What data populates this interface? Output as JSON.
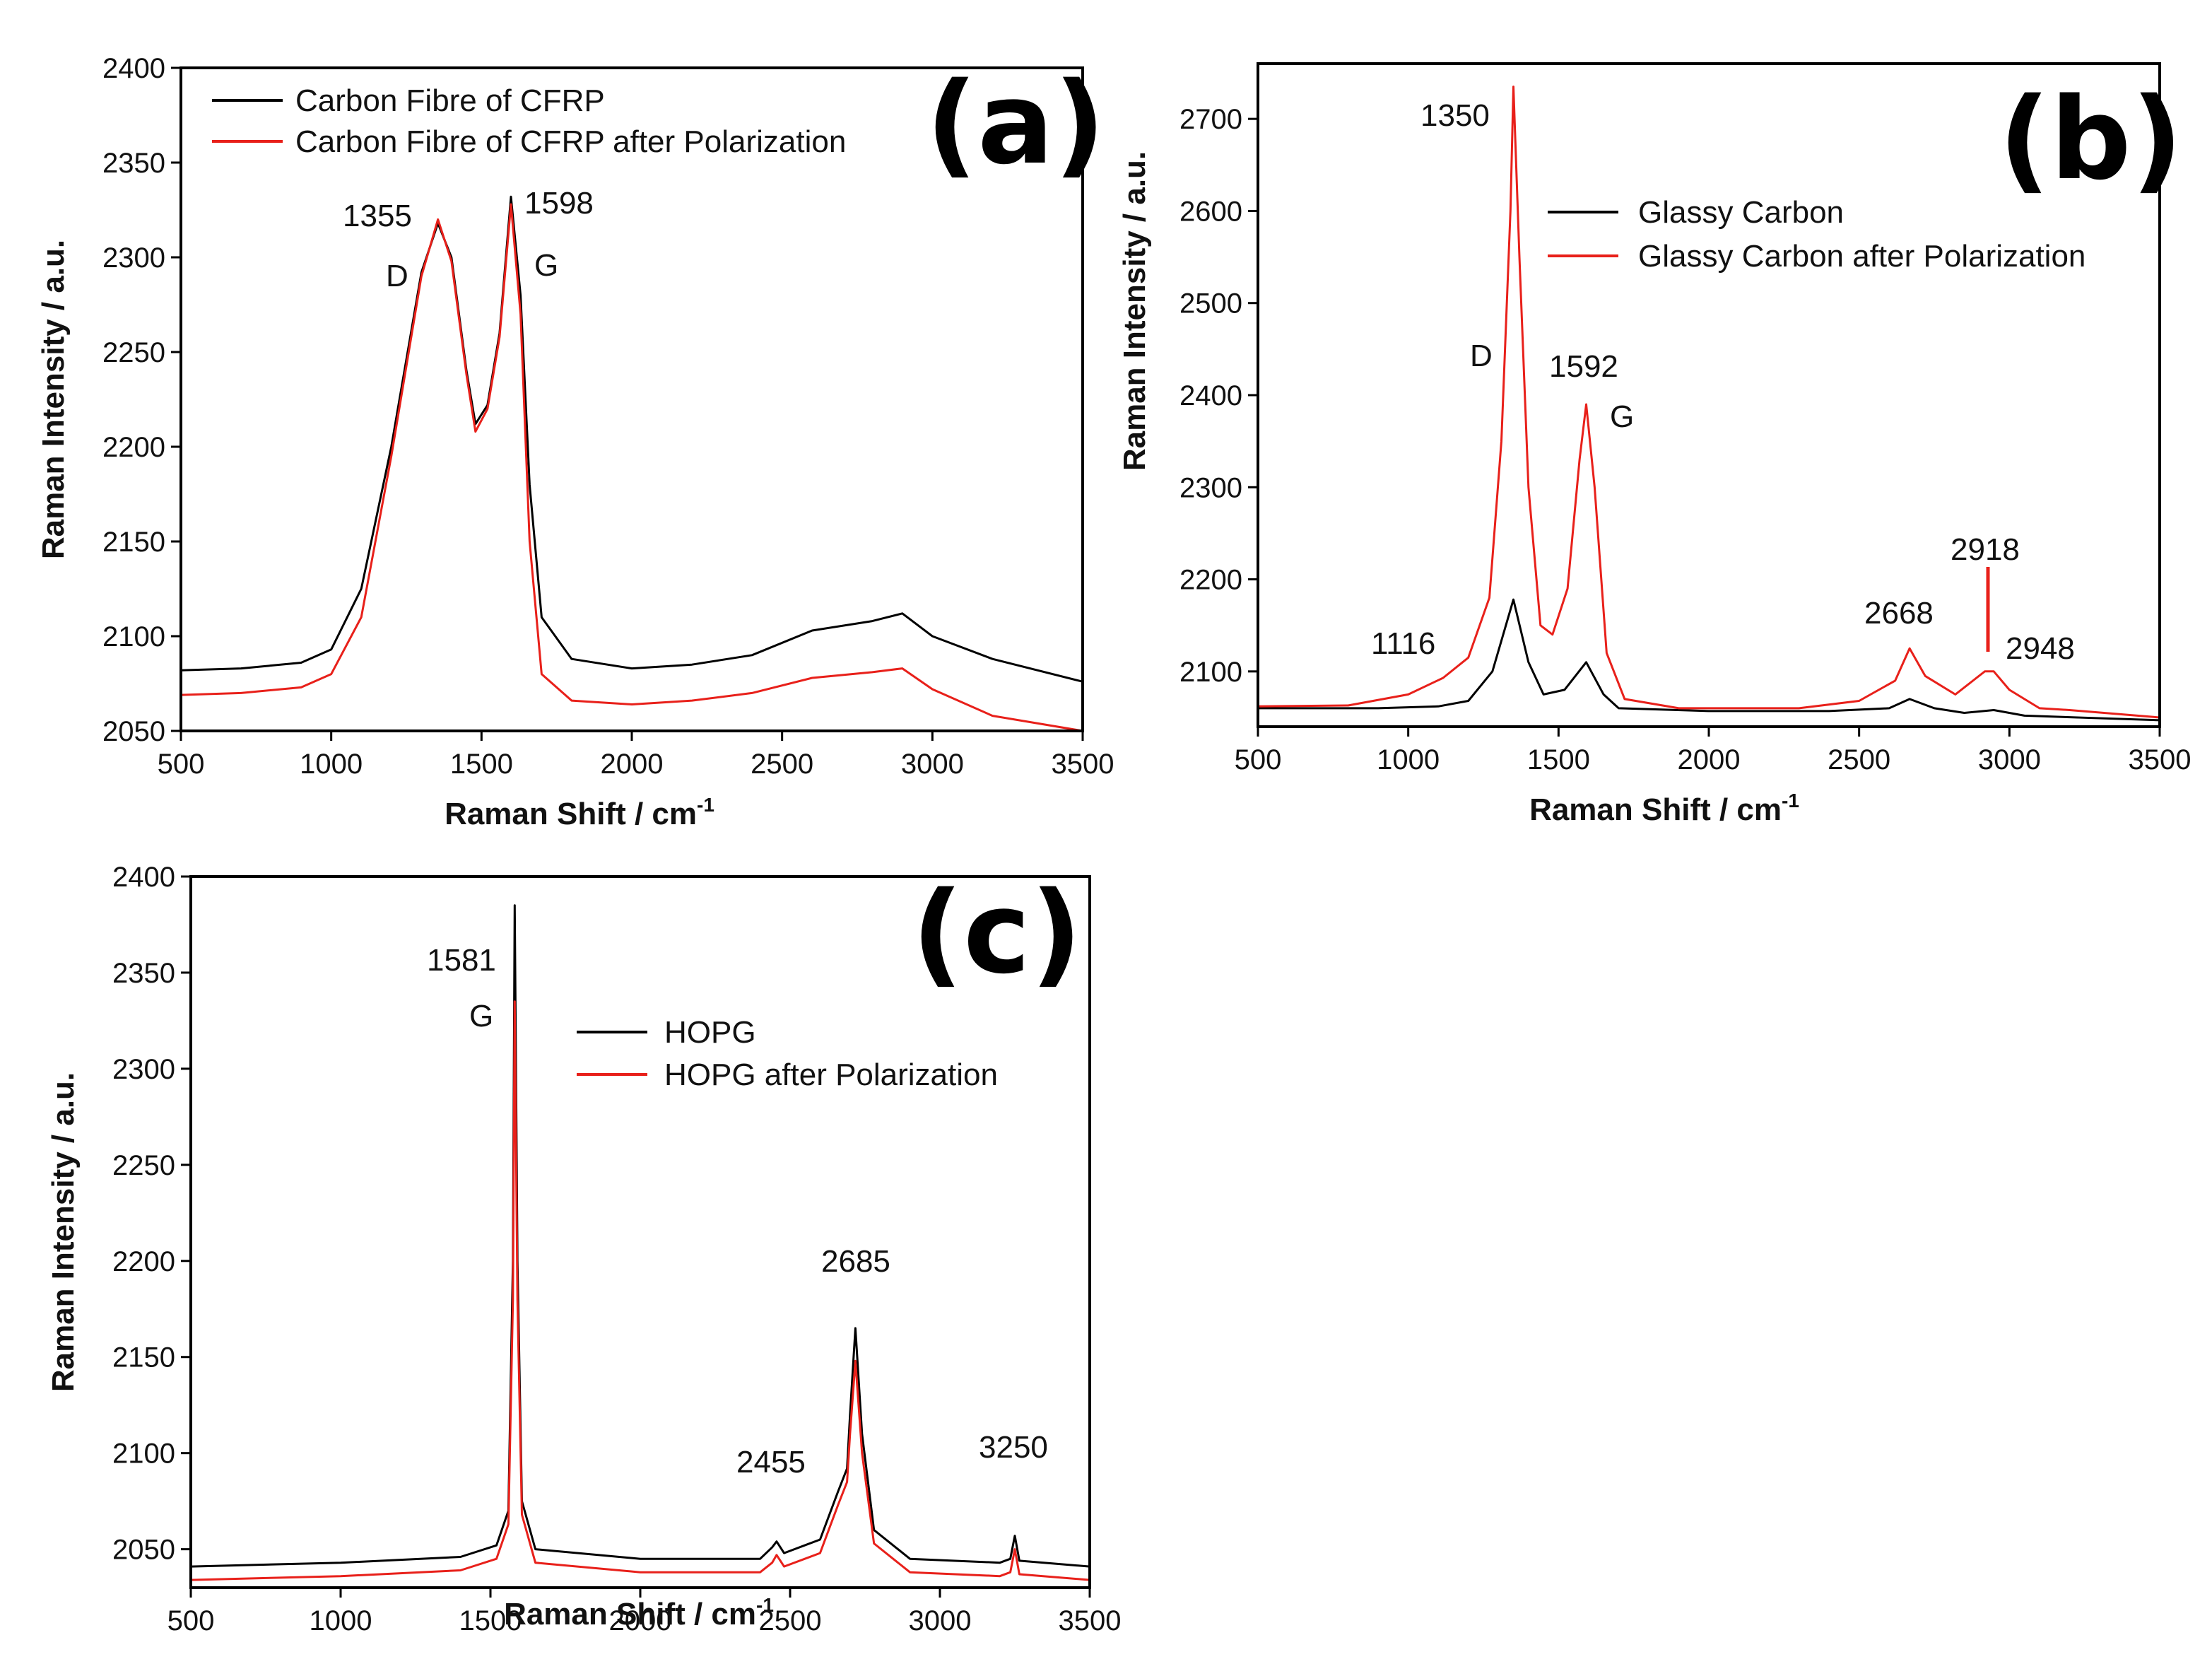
{
  "chart_data": [
    {
      "id": "a",
      "type": "line",
      "panel_label": "(a)",
      "xlabel": "Raman Shift / cm",
      "xlabel_sup": "-1",
      "ylabel": "Raman Intensity / a.u.",
      "xlim": [
        500,
        3500
      ],
      "ylim": [
        2050,
        2400
      ],
      "xticks": [
        500,
        1000,
        1500,
        2000,
        2500,
        3000,
        3500
      ],
      "yticks": [
        2050,
        2100,
        2150,
        2200,
        2250,
        2300,
        2350,
        2400
      ],
      "series": [
        {
          "name": "Carbon Fibre of CFRP",
          "color": "#000000",
          "points": [
            [
              500,
              2082
            ],
            [
              700,
              2083
            ],
            [
              900,
              2086
            ],
            [
              1000,
              2093
            ],
            [
              1100,
              2125
            ],
            [
              1200,
              2200
            ],
            [
              1300,
              2292
            ],
            [
              1355,
              2318
            ],
            [
              1400,
              2300
            ],
            [
              1450,
              2240
            ],
            [
              1480,
              2212
            ],
            [
              1520,
              2222
            ],
            [
              1560,
              2260
            ],
            [
              1598,
              2332
            ],
            [
              1630,
              2280
            ],
            [
              1660,
              2180
            ],
            [
              1700,
              2110
            ],
            [
              1800,
              2088
            ],
            [
              2000,
              2083
            ],
            [
              2200,
              2085
            ],
            [
              2400,
              2090
            ],
            [
              2600,
              2103
            ],
            [
              2800,
              2108
            ],
            [
              2900,
              2112
            ],
            [
              3000,
              2100
            ],
            [
              3200,
              2088
            ],
            [
              3500,
              2076
            ]
          ]
        },
        {
          "name": "Carbon Fibre of CFRP after Polarization",
          "color": "#e8201a",
          "points": [
            [
              500,
              2069
            ],
            [
              700,
              2070
            ],
            [
              900,
              2073
            ],
            [
              1000,
              2080
            ],
            [
              1100,
              2110
            ],
            [
              1200,
              2195
            ],
            [
              1300,
              2290
            ],
            [
              1355,
              2320
            ],
            [
              1400,
              2298
            ],
            [
              1450,
              2238
            ],
            [
              1480,
              2208
            ],
            [
              1520,
              2220
            ],
            [
              1560,
              2258
            ],
            [
              1598,
              2328
            ],
            [
              1630,
              2270
            ],
            [
              1660,
              2150
            ],
            [
              1700,
              2080
            ],
            [
              1800,
              2066
            ],
            [
              2000,
              2064
            ],
            [
              2200,
              2066
            ],
            [
              2400,
              2070
            ],
            [
              2600,
              2078
            ],
            [
              2800,
              2081
            ],
            [
              2900,
              2083
            ],
            [
              3000,
              2072
            ],
            [
              3200,
              2058
            ],
            [
              3500,
              2050
            ]
          ]
        }
      ],
      "annotations": [
        "1355",
        "D",
        "1598",
        "G"
      ]
    },
    {
      "id": "b",
      "type": "line",
      "panel_label": "(b)",
      "xlabel": "Raman Shift / cm",
      "xlabel_sup": "-1",
      "ylabel": "Raman Intensity / a.u.",
      "xlim": [
        500,
        3500
      ],
      "ylim": [
        2040,
        2760
      ],
      "xticks": [
        500,
        1000,
        1500,
        2000,
        2500,
        3000,
        3500
      ],
      "yticks": [
        2100,
        2200,
        2300,
        2400,
        2500,
        2600,
        2700
      ],
      "series": [
        {
          "name": "Glassy Carbon",
          "color": "#000000",
          "points": [
            [
              500,
              2060
            ],
            [
              900,
              2060
            ],
            [
              1100,
              2062
            ],
            [
              1200,
              2068
            ],
            [
              1280,
              2100
            ],
            [
              1350,
              2178
            ],
            [
              1400,
              2110
            ],
            [
              1450,
              2075
            ],
            [
              1520,
              2080
            ],
            [
              1592,
              2110
            ],
            [
              1650,
              2075
            ],
            [
              1700,
              2060
            ],
            [
              2000,
              2057
            ],
            [
              2400,
              2057
            ],
            [
              2600,
              2060
            ],
            [
              2668,
              2070
            ],
            [
              2750,
              2060
            ],
            [
              2850,
              2055
            ],
            [
              2948,
              2058
            ],
            [
              3050,
              2052
            ],
            [
              3500,
              2047
            ]
          ]
        },
        {
          "name": "Glassy Carbon after Polarization",
          "color": "#e8201a",
          "points": [
            [
              500,
              2062
            ],
            [
              800,
              2063
            ],
            [
              1000,
              2075
            ],
            [
              1116,
              2093
            ],
            [
              1200,
              2115
            ],
            [
              1270,
              2180
            ],
            [
              1310,
              2350
            ],
            [
              1340,
              2600
            ],
            [
              1350,
              2735
            ],
            [
              1370,
              2550
            ],
            [
              1400,
              2300
            ],
            [
              1440,
              2150
            ],
            [
              1480,
              2140
            ],
            [
              1530,
              2190
            ],
            [
              1570,
              2330
            ],
            [
              1592,
              2390
            ],
            [
              1620,
              2300
            ],
            [
              1660,
              2120
            ],
            [
              1720,
              2070
            ],
            [
              1900,
              2060
            ],
            [
              2300,
              2060
            ],
            [
              2500,
              2068
            ],
            [
              2620,
              2090
            ],
            [
              2668,
              2125
            ],
            [
              2720,
              2095
            ],
            [
              2820,
              2075
            ],
            [
              2918,
              2100
            ],
            [
              2948,
              2100
            ],
            [
              3000,
              2080
            ],
            [
              3100,
              2060
            ],
            [
              3200,
              2058
            ],
            [
              3500,
              2050
            ]
          ]
        }
      ],
      "annotations": [
        "1350",
        "D",
        "1592",
        "G",
        "1116",
        "2668",
        "2918",
        "2948"
      ]
    },
    {
      "id": "c",
      "type": "line",
      "panel_label": "(c)",
      "xlabel": "Raman Shift / cm",
      "xlabel_sup": "-1",
      "ylabel": "Raman Intensity / a.u.",
      "xlim": [
        500,
        3500
      ],
      "ylim": [
        2030,
        2400
      ],
      "xticks": [
        500,
        1000,
        1500,
        2000,
        2500,
        3000,
        3500
      ],
      "yticks": [
        2050,
        2100,
        2150,
        2200,
        2250,
        2300,
        2350,
        2400
      ],
      "series": [
        {
          "name": "HOPG",
          "color": "#000000",
          "points": [
            [
              500,
              2041
            ],
            [
              1000,
              2043
            ],
            [
              1400,
              2046
            ],
            [
              1520,
              2052
            ],
            [
              1560,
              2070
            ],
            [
              1575,
              2200
            ],
            [
              1581,
              2385
            ],
            [
              1590,
              2200
            ],
            [
              1605,
              2075
            ],
            [
              1650,
              2050
            ],
            [
              2000,
              2045
            ],
            [
              2400,
              2045
            ],
            [
              2440,
              2051
            ],
            [
              2455,
              2054
            ],
            [
              2480,
              2048
            ],
            [
              2600,
              2055
            ],
            [
              2660,
              2080
            ],
            [
              2690,
              2092
            ],
            [
              2700,
              2120
            ],
            [
              2718,
              2165
            ],
            [
              2740,
              2110
            ],
            [
              2780,
              2060
            ],
            [
              2900,
              2045
            ],
            [
              3200,
              2043
            ],
            [
              3235,
              2045
            ],
            [
              3250,
              2057
            ],
            [
              3265,
              2044
            ],
            [
              3500,
              2041
            ]
          ]
        },
        {
          "name": "HOPG after Polarization",
          "color": "#e8201a",
          "points": [
            [
              500,
              2034
            ],
            [
              1000,
              2036
            ],
            [
              1400,
              2039
            ],
            [
              1520,
              2045
            ],
            [
              1560,
              2063
            ],
            [
              1575,
              2180
            ],
            [
              1581,
              2335
            ],
            [
              1590,
              2180
            ],
            [
              1605,
              2068
            ],
            [
              1650,
              2043
            ],
            [
              2000,
              2038
            ],
            [
              2400,
              2038
            ],
            [
              2440,
              2043
            ],
            [
              2455,
              2047
            ],
            [
              2480,
              2041
            ],
            [
              2600,
              2048
            ],
            [
              2660,
              2073
            ],
            [
              2690,
              2085
            ],
            [
              2700,
              2110
            ],
            [
              2718,
              2148
            ],
            [
              2740,
              2100
            ],
            [
              2780,
              2053
            ],
            [
              2900,
              2038
            ],
            [
              3200,
              2036
            ],
            [
              3235,
              2038
            ],
            [
              3250,
              2050
            ],
            [
              3265,
              2037
            ],
            [
              3500,
              2034
            ]
          ]
        }
      ],
      "annotations": [
        "1581",
        "G",
        "2685",
        "2455",
        "3250"
      ]
    }
  ]
}
